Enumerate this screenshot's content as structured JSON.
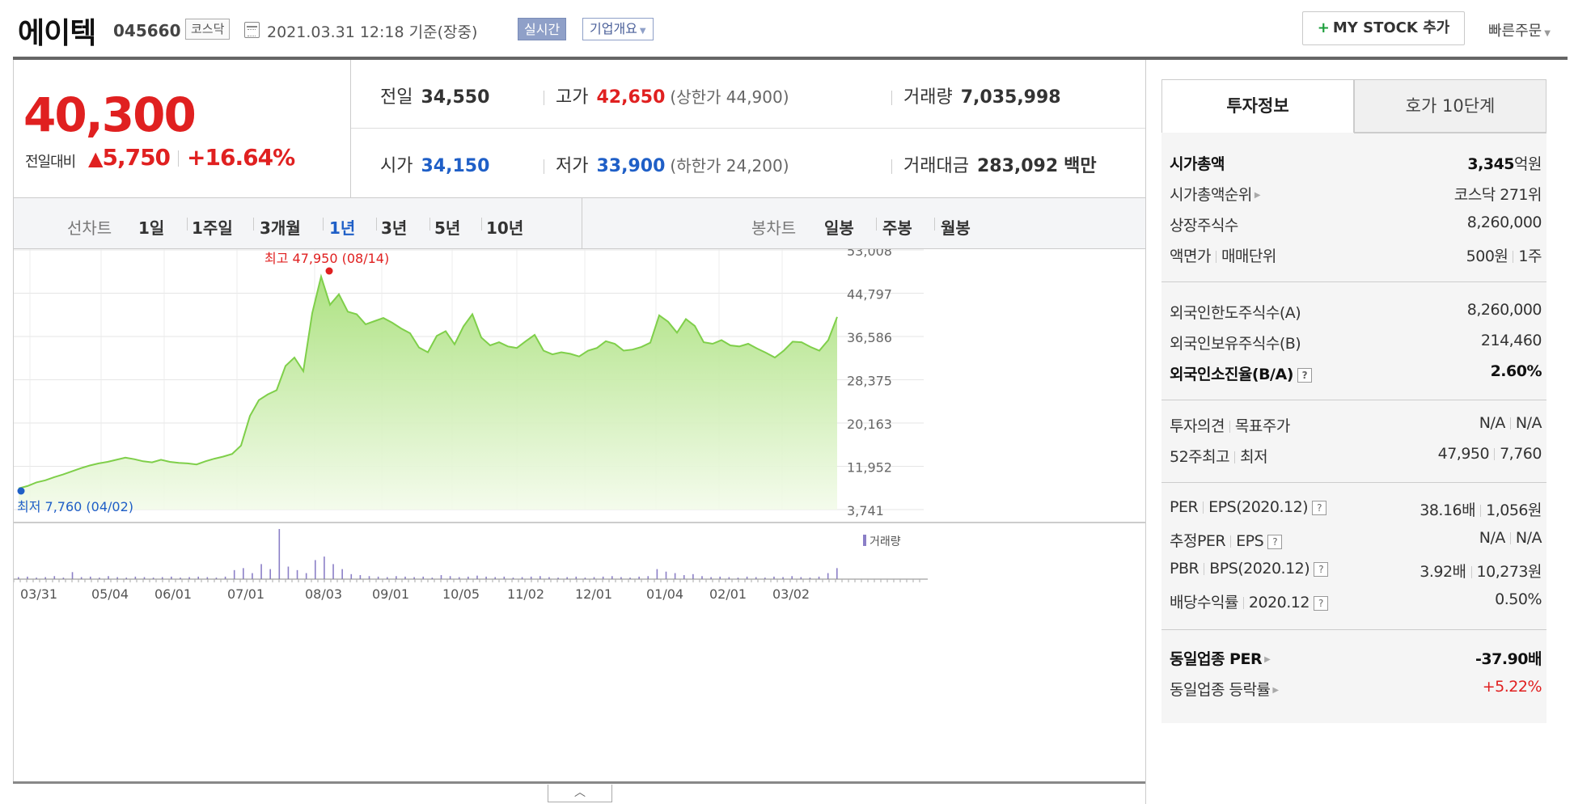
{
  "header": {
    "name": "에이텍",
    "code": "045660",
    "market": "코스닥",
    "datetime": "2021.03.31 12:18 기준(장중)",
    "realtime": "실시간",
    "company_overview": "기업개요",
    "mystock_label": "MY STOCK 추가",
    "quick_order": "빠른주문"
  },
  "price": {
    "current": "40,300",
    "prev_label": "전일대비",
    "change": "5,750",
    "change_pct": "+16.64%"
  },
  "info": {
    "prev": {
      "label": "전일",
      "value": "34,550"
    },
    "high": {
      "label": "고가",
      "value": "42,650",
      "sub": "(상한가 44,900)"
    },
    "volume": {
      "label": "거래량",
      "value": "7,035,998"
    },
    "open": {
      "label": "시가",
      "value": "34,150"
    },
    "low": {
      "label": "저가",
      "value": "33,900",
      "sub": "(하한가 24,200)"
    },
    "amount": {
      "label": "거래대금",
      "value": "283,092",
      "unit": "백만"
    }
  },
  "tabs": {
    "line_label": "선차트",
    "line": [
      "1일",
      "1주일",
      "3개월",
      "1년",
      "3년",
      "5년",
      "10년"
    ],
    "active": "1년",
    "candle_label": "봉차트",
    "candle": [
      "일봉",
      "주봉",
      "월봉"
    ]
  },
  "colors": {
    "up": "#e02020",
    "down": "#1f5fc7",
    "line": "#7fcf4a",
    "volume": "#8b7fc7"
  },
  "chart_data": {
    "type": "area",
    "y_ticks": [
      "53,008",
      "44,797",
      "36,586",
      "28,375",
      "20,163",
      "11,952",
      "3,741"
    ],
    "ylim": [
      3741,
      53008
    ],
    "x_ticks": [
      "03/31",
      "05/04",
      "06/01",
      "07/01",
      "08/03",
      "09/01",
      "10/05",
      "11/02",
      "12/01",
      "01/04",
      "02/01",
      "03/02"
    ],
    "high_label": "최고 47,950 (08/14)",
    "low_label": "최저 7,760 (04/02)",
    "volume_legend": "거래량",
    "series": [
      {
        "values": [
          7760,
          8200,
          8900,
          9300,
          9900,
          10400,
          11000,
          11600,
          12100,
          12500,
          12800,
          13200,
          13600,
          13300,
          12900,
          12700,
          13200,
          12800,
          12600,
          12500,
          12300,
          12900,
          13400,
          13800,
          14300,
          15900,
          21500,
          24500,
          25600,
          26400,
          31000,
          32600,
          30000,
          41000,
          47950,
          42600,
          44600,
          41300,
          40800,
          38900,
          39500,
          40100,
          39200,
          38100,
          37200,
          34500,
          33600,
          36700,
          37600,
          35100,
          38500,
          40800,
          36400,
          34900,
          35500,
          34700,
          34400,
          35700,
          36900,
          33900,
          33200,
          33600,
          33300,
          32800,
          33900,
          34400,
          35700,
          35200,
          33900,
          34100,
          34600,
          35400,
          40600,
          39400,
          37300,
          39900,
          38600,
          35500,
          35200,
          35900,
          34900,
          34700,
          35200,
          34300,
          33500,
          32600,
          33900,
          35600,
          35500,
          34600,
          33900,
          35900,
          40300
        ]
      },
      {
        "name": "거래량",
        "values": [
          0.04,
          0.05,
          0.03,
          0.04,
          0.06,
          0.03,
          0.14,
          0.04,
          0.05,
          0.03,
          0.06,
          0.04,
          0.03,
          0.05,
          0.04,
          0.03,
          0.04,
          0.05,
          0.03,
          0.04,
          0.05,
          0.04,
          0.03,
          0.05,
          0.18,
          0.22,
          0.12,
          0.3,
          0.2,
          1.0,
          0.25,
          0.18,
          0.12,
          0.38,
          0.45,
          0.3,
          0.2,
          0.1,
          0.08,
          0.06,
          0.05,
          0.04,
          0.06,
          0.05,
          0.04,
          0.05,
          0.03,
          0.08,
          0.06,
          0.04,
          0.05,
          0.07,
          0.05,
          0.04,
          0.05,
          0.03,
          0.04,
          0.05,
          0.06,
          0.04,
          0.03,
          0.04,
          0.05,
          0.03,
          0.04,
          0.05,
          0.06,
          0.04,
          0.03,
          0.05,
          0.06,
          0.2,
          0.15,
          0.12,
          0.08,
          0.1,
          0.06,
          0.04,
          0.05,
          0.04,
          0.03,
          0.05,
          0.04,
          0.03,
          0.05,
          0.04,
          0.06,
          0.04,
          0.03,
          0.05,
          0.12,
          0.22
        ]
      }
    ]
  },
  "invest": {
    "tab_on": "투자정보",
    "tab_off": "호가 10단계",
    "g1": [
      {
        "label": "시가총액",
        "value": "3,345",
        "unit": "억원"
      },
      {
        "label": "시가총액순위",
        "value": "코스닥 271위"
      },
      {
        "label": "상장주식수",
        "value": "8,260,000"
      },
      {
        "label": "액면가",
        "label2": "매매단위",
        "value": "500원",
        "value2": "1주"
      }
    ],
    "g2": [
      {
        "label": "외국인한도주식수(A)",
        "value": "8,260,000"
      },
      {
        "label": "외국인보유주식수(B)",
        "value": "214,460"
      },
      {
        "label": "외국인소진율(B/A)",
        "value": "2.60%"
      }
    ],
    "g3": [
      {
        "label": "투자의견",
        "label2": "목표주가",
        "value": "N/A",
        "value2": "N/A"
      },
      {
        "label": "52주최고",
        "label2": "최저",
        "value": "47,950",
        "value2": "7,760"
      }
    ],
    "g4": [
      {
        "label": "PER",
        "label2": "EPS(2020.12)",
        "value": "38.16배",
        "value2": "1,056원"
      },
      {
        "label": "추정PER",
        "label2": "EPS",
        "value": "N/A",
        "value2": "N/A"
      },
      {
        "label": "PBR",
        "label2": "BPS",
        "label3": "(2020.12)",
        "value": "3.92배",
        "value2": "10,273원"
      },
      {
        "label": "배당수익률",
        "label2": "2020.12",
        "value": "0.50%"
      }
    ],
    "g5": [
      {
        "label": "동일업종 PER",
        "value": "-37.90배"
      },
      {
        "label": "동일업종 등락률",
        "value": "+5.22%"
      }
    ],
    "qmark": "?"
  }
}
